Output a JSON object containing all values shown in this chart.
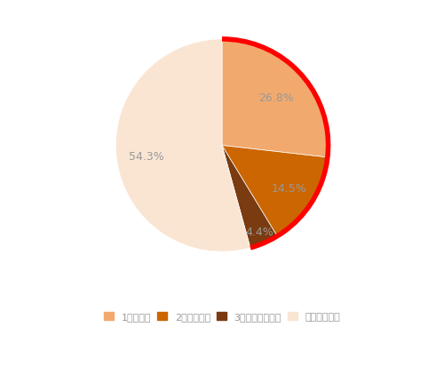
{
  "labels": [
    "1日休んだ",
    "2日間休んだ",
    "3日間以上休んだ",
    "休まなかった"
  ],
  "values": [
    26.8,
    14.5,
    4.4,
    54.3
  ],
  "colors": [
    "#F2A96E",
    "#CC6600",
    "#7A3B10",
    "#FAE5D3"
  ],
  "pct_labels": [
    "26.8%",
    "14.5%",
    "4.4%",
    "54.3%"
  ],
  "legend_colors": [
    "#F2A96E",
    "#CC6600",
    "#7A3B10",
    "#FAE5D3"
  ],
  "text_color": "#999999",
  "bg_color": "#ffffff",
  "startangle": 90,
  "red_border_color": "#FF0000",
  "red_border_linewidth": 4
}
